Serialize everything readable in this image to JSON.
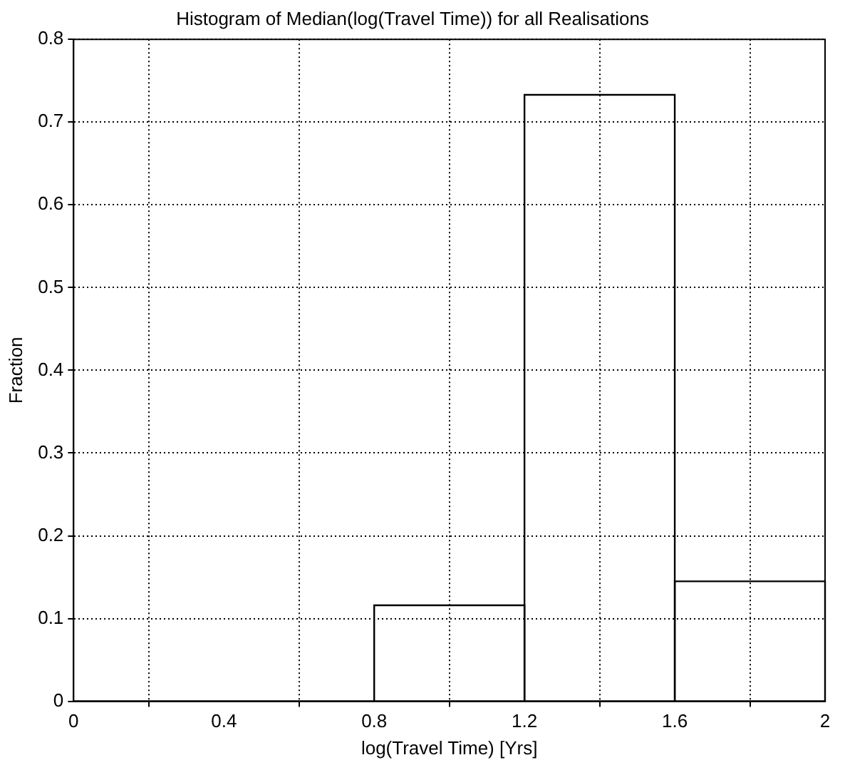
{
  "chart_data": {
    "type": "histogram",
    "title": "Histogram of Median(log(Travel Time)) for all Realisations",
    "xlabel": "log(Travel Time) [Yrs]",
    "ylabel": "Fraction",
    "bins": [
      0,
      0.4,
      0.8,
      1.2,
      1.6,
      2
    ],
    "values": [
      0,
      0,
      0.116,
      0.733,
      0.145
    ],
    "color": "#000000",
    "xlim": [
      0,
      2
    ],
    "xticks": [
      0,
      0.4,
      0.8,
      1.2,
      1.6,
      2
    ],
    "ylim": [
      0,
      0.8
    ],
    "yticks": [
      0,
      0.1,
      0.2,
      0.3,
      0.4,
      0.5,
      0.6,
      0.7,
      0.8
    ],
    "grid": true,
    "legend": false
  }
}
